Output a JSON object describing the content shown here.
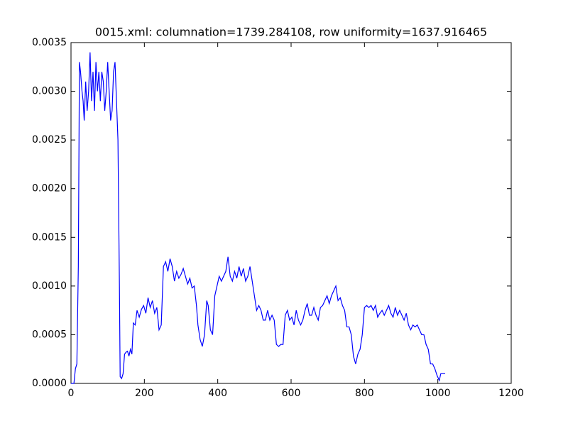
{
  "chart_data": {
    "type": "line",
    "title": "0015.xml: columnation=1739.284108, row uniformity=1637.916465",
    "color": "#0000ff",
    "x": [
      0,
      8,
      12,
      16,
      20,
      23,
      26,
      30,
      33,
      36,
      40,
      44,
      48,
      52,
      56,
      60,
      64,
      68,
      72,
      76,
      80,
      84,
      88,
      92,
      96,
      100,
      104,
      108,
      112,
      116,
      120,
      124,
      128,
      132,
      134,
      138,
      142,
      146,
      150,
      154,
      158,
      162,
      166,
      170,
      175,
      180,
      186,
      192,
      198,
      204,
      210,
      216,
      222,
      228,
      234,
      240,
      246,
      252,
      258,
      264,
      270,
      276,
      282,
      288,
      294,
      300,
      306,
      312,
      318,
      324,
      330,
      336,
      342,
      346,
      352,
      358,
      364,
      370,
      374,
      380,
      386,
      392,
      398,
      404,
      410,
      416,
      422,
      428,
      434,
      440,
      446,
      452,
      458,
      464,
      470,
      476,
      482,
      488,
      494,
      500,
      506,
      512,
      518,
      524,
      530,
      536,
      542,
      548,
      554,
      560,
      566,
      572,
      578,
      584,
      590,
      596,
      602,
      608,
      614,
      620,
      626,
      632,
      638,
      644,
      650,
      656,
      662,
      668,
      674,
      680,
      686,
      692,
      698,
      704,
      710,
      716,
      722,
      728,
      734,
      740,
      746,
      752,
      758,
      764,
      770,
      776,
      782,
      788,
      794,
      800,
      806,
      812,
      818,
      824,
      830,
      836,
      842,
      848,
      854,
      860,
      866,
      872,
      878,
      884,
      890,
      896,
      902,
      908,
      914,
      920,
      926,
      932,
      938,
      944,
      950,
      956,
      962,
      968,
      974,
      980,
      986,
      992,
      998,
      1004,
      1008,
      1014,
      1020
    ],
    "values": [
      0,
      0,
      0.00015,
      0.0002,
      0.0012,
      0.0033,
      0.0032,
      0.003,
      0.0029,
      0.0027,
      0.0031,
      0.0028,
      0.003,
      0.0034,
      0.0029,
      0.0032,
      0.0028,
      0.0033,
      0.003,
      0.0032,
      0.0029,
      0.0032,
      0.0031,
      0.0028,
      0.003,
      0.0033,
      0.003,
      0.0027,
      0.0028,
      0.0032,
      0.0033,
      0.0029,
      0.0025,
      0.001,
      7e-05,
      5e-05,
      0.0001,
      0.0003,
      0.00032,
      0.00033,
      0.00028,
      0.00035,
      0.0003,
      0.00062,
      0.0006,
      0.00075,
      0.00068,
      0.00076,
      0.0008,
      0.00072,
      0.00088,
      0.00078,
      0.00085,
      0.00072,
      0.00078,
      0.00055,
      0.0006,
      0.0012,
      0.00125,
      0.00115,
      0.00128,
      0.0012,
      0.00105,
      0.00115,
      0.00108,
      0.00112,
      0.00118,
      0.0011,
      0.00102,
      0.00108,
      0.00098,
      0.001,
      0.0008,
      0.0006,
      0.00045,
      0.00038,
      0.0005,
      0.00085,
      0.0008,
      0.00055,
      0.0005,
      0.0009,
      0.001,
      0.0011,
      0.00105,
      0.0011,
      0.00115,
      0.0013,
      0.0011,
      0.00105,
      0.00115,
      0.00108,
      0.0012,
      0.0011,
      0.00118,
      0.00105,
      0.0011,
      0.0012,
      0.00105,
      0.0009,
      0.00075,
      0.0008,
      0.00075,
      0.00065,
      0.00065,
      0.00075,
      0.00065,
      0.0007,
      0.00065,
      0.0004,
      0.00038,
      0.0004,
      0.0004,
      0.0007,
      0.00075,
      0.00065,
      0.00068,
      0.0006,
      0.00075,
      0.00065,
      0.0006,
      0.00065,
      0.00075,
      0.00082,
      0.0007,
      0.0007,
      0.00078,
      0.0007,
      0.00065,
      0.00078,
      0.0008,
      0.00085,
      0.0009,
      0.00082,
      0.0009,
      0.00095,
      0.001,
      0.00085,
      0.00088,
      0.0008,
      0.00075,
      0.00058,
      0.00058,
      0.0005,
      0.00028,
      0.0002,
      0.0003,
      0.00035,
      0.0005,
      0.00078,
      0.0008,
      0.00078,
      0.0008,
      0.00075,
      0.0008,
      0.00068,
      0.00072,
      0.00075,
      0.0007,
      0.00075,
      0.0008,
      0.00072,
      0.00068,
      0.00078,
      0.0007,
      0.00075,
      0.0007,
      0.00065,
      0.00072,
      0.0006,
      0.00055,
      0.0006,
      0.00058,
      0.0006,
      0.00055,
      0.0005,
      0.0005,
      0.0004,
      0.00035,
      0.0002,
      0.0002,
      0.00015,
      8e-05,
      3e-05,
      0.0001,
      0.0001,
      0.0001
    ],
    "xlim": [
      0,
      1200
    ],
    "xticks": [
      0,
      200,
      400,
      600,
      800,
      1000,
      1200
    ],
    "ylim": [
      0,
      0.0035
    ],
    "yticks": [
      {
        "value": 0,
        "label": "0.0000"
      },
      {
        "value": 0.0005,
        "label": "0.0005"
      },
      {
        "value": 0.001,
        "label": "0.0010"
      },
      {
        "value": 0.0015,
        "label": "0.0015"
      },
      {
        "value": 0.002,
        "label": "0.0020"
      },
      {
        "value": 0.0025,
        "label": "0.0025"
      },
      {
        "value": 0.003,
        "label": "0.0030"
      },
      {
        "value": 0.0035,
        "label": "0.0035"
      }
    ],
    "grid": false
  }
}
